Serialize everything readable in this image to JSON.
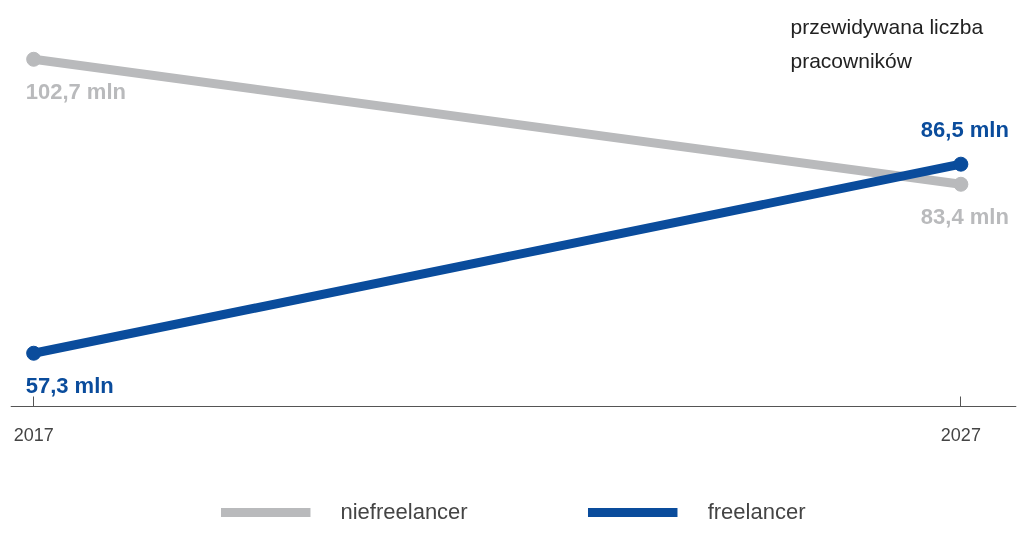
{
  "chart_data": {
    "type": "line",
    "x": [
      2017,
      2027
    ],
    "xlim": [
      2016.75,
      2027.6
    ],
    "xticks": [
      2017,
      2027
    ],
    "series": [
      {
        "name": "niefreelancer",
        "color": "#b9babc",
        "values": [
          102.7,
          83.4
        ],
        "value_labels": [
          "102,7 mln",
          "83,4 mln"
        ]
      },
      {
        "name": "freelancer",
        "color": "#0a4c9c",
        "values": [
          57.3,
          86.5
        ],
        "value_labels": [
          "57,3 mln",
          "86,5 mln"
        ]
      }
    ],
    "annotations": [
      "przewidywana liczba pracowników"
    ],
    "legend": "bottom",
    "grid": false,
    "marker": "circle",
    "line_style": "solid",
    "tick_labels": "x"
  }
}
